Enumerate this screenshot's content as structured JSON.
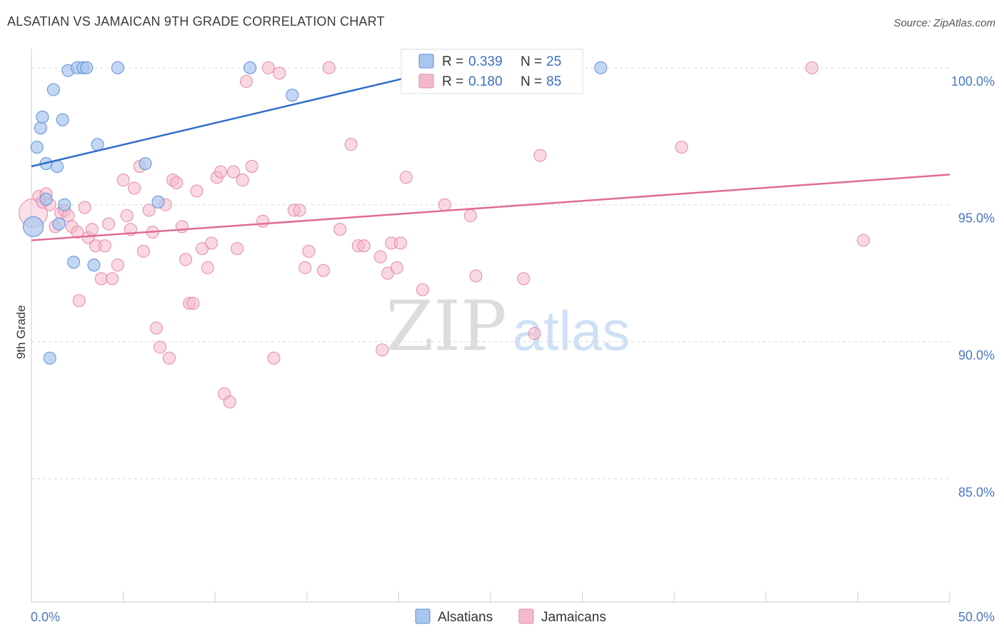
{
  "title": "ALSATIAN VS JAMAICAN 9TH GRADE CORRELATION CHART",
  "source": "Source: ZipAtlas.com",
  "watermark": {
    "zip": "ZIP",
    "atlas": "atlas"
  },
  "colors": {
    "blue_fill": "#a9c6ef",
    "blue_stroke": "#5e8fd6",
    "blue_line": "#2f6ccc",
    "pink_fill": "#f4b8cb",
    "pink_stroke": "#e58aa7",
    "pink_line": "#e06c96",
    "grid": "#d8d8d8",
    "axis_text": "#4a78c2"
  },
  "legend": {
    "r_label": "R =",
    "n_label": "N =",
    "rows": [
      {
        "series": "Alsatians",
        "r": "0.339",
        "n": "25"
      },
      {
        "series": "Jamaicans",
        "r": "0.180",
        "n": "85"
      }
    ]
  },
  "chart_data": {
    "type": "scatter",
    "title": "ALSATIAN VS JAMAICAN 9TH GRADE CORRELATION CHART",
    "xlabel": "",
    "ylabel": "9th Grade",
    "xlim": [
      0,
      50
    ],
    "ylim": [
      80.5,
      100.7
    ],
    "x_ticks": [
      0,
      50
    ],
    "x_tick_labels": [
      "0.0%",
      "50.0%"
    ],
    "y_ticks": [
      100,
      95,
      90,
      85
    ],
    "y_tick_labels": [
      "100.0%",
      "95.0%",
      "90.0%",
      "85.0%"
    ],
    "grid": true,
    "legend_position": "top-center",
    "series": [
      {
        "name": "Alsatians",
        "r": 0.339,
        "n": 25,
        "trend": {
          "x": [
            0,
            24
          ],
          "y": [
            96.4,
            100.2
          ]
        },
        "points": [
          {
            "x": 0.1,
            "y": 94.2,
            "big": true
          },
          {
            "x": 0.3,
            "y": 97.1
          },
          {
            "x": 0.5,
            "y": 97.8
          },
          {
            "x": 0.6,
            "y": 98.2
          },
          {
            "x": 0.8,
            "y": 96.5
          },
          {
            "x": 0.8,
            "y": 95.2
          },
          {
            "x": 1.0,
            "y": 89.4
          },
          {
            "x": 1.2,
            "y": 99.2
          },
          {
            "x": 1.4,
            "y": 96.4
          },
          {
            "x": 1.5,
            "y": 94.3
          },
          {
            "x": 1.7,
            "y": 98.1
          },
          {
            "x": 1.8,
            "y": 95.0
          },
          {
            "x": 2.0,
            "y": 99.9
          },
          {
            "x": 2.3,
            "y": 92.9
          },
          {
            "x": 2.5,
            "y": 100.0
          },
          {
            "x": 2.8,
            "y": 100.0
          },
          {
            "x": 3.0,
            "y": 100.0
          },
          {
            "x": 3.4,
            "y": 92.8
          },
          {
            "x": 3.6,
            "y": 97.2
          },
          {
            "x": 4.7,
            "y": 100.0
          },
          {
            "x": 6.2,
            "y": 96.5
          },
          {
            "x": 6.9,
            "y": 95.1
          },
          {
            "x": 11.9,
            "y": 100.0
          },
          {
            "x": 14.2,
            "y": 99.0
          },
          {
            "x": 31.0,
            "y": 100.0
          }
        ]
      },
      {
        "name": "Jamaicans",
        "r": 0.18,
        "n": 85,
        "trend": {
          "x": [
            0,
            50
          ],
          "y": [
            93.7,
            96.1
          ]
        },
        "points": [
          {
            "x": 0.1,
            "y": 94.7,
            "big": true
          },
          {
            "x": 0.4,
            "y": 95.3
          },
          {
            "x": 0.6,
            "y": 95.1
          },
          {
            "x": 0.8,
            "y": 95.4
          },
          {
            "x": 1.0,
            "y": 95.0
          },
          {
            "x": 1.3,
            "y": 94.2
          },
          {
            "x": 1.6,
            "y": 94.7
          },
          {
            "x": 1.8,
            "y": 94.8
          },
          {
            "x": 2.0,
            "y": 94.6
          },
          {
            "x": 2.2,
            "y": 94.2
          },
          {
            "x": 2.5,
            "y": 94.0
          },
          {
            "x": 2.6,
            "y": 91.5
          },
          {
            "x": 2.9,
            "y": 94.9
          },
          {
            "x": 3.1,
            "y": 93.8
          },
          {
            "x": 3.3,
            "y": 94.1
          },
          {
            "x": 3.5,
            "y": 93.5
          },
          {
            "x": 3.8,
            "y": 92.3
          },
          {
            "x": 4.0,
            "y": 93.5
          },
          {
            "x": 4.2,
            "y": 94.3
          },
          {
            "x": 4.4,
            "y": 92.3
          },
          {
            "x": 4.7,
            "y": 92.8
          },
          {
            "x": 5.0,
            "y": 95.9
          },
          {
            "x": 5.2,
            "y": 94.6
          },
          {
            "x": 5.4,
            "y": 94.1
          },
          {
            "x": 5.6,
            "y": 95.6
          },
          {
            "x": 5.9,
            "y": 96.4
          },
          {
            "x": 6.1,
            "y": 93.3
          },
          {
            "x": 6.4,
            "y": 94.8
          },
          {
            "x": 6.6,
            "y": 94.0
          },
          {
            "x": 6.8,
            "y": 90.5
          },
          {
            "x": 7.0,
            "y": 89.8
          },
          {
            "x": 7.3,
            "y": 95.0
          },
          {
            "x": 7.5,
            "y": 89.4
          },
          {
            "x": 7.7,
            "y": 95.9
          },
          {
            "x": 7.9,
            "y": 95.8
          },
          {
            "x": 8.2,
            "y": 94.2
          },
          {
            "x": 8.4,
            "y": 93.0
          },
          {
            "x": 8.6,
            "y": 91.4
          },
          {
            "x": 8.8,
            "y": 91.4
          },
          {
            "x": 9.0,
            "y": 95.5
          },
          {
            "x": 9.3,
            "y": 93.4
          },
          {
            "x": 9.6,
            "y": 92.7
          },
          {
            "x": 9.8,
            "y": 93.6
          },
          {
            "x": 10.1,
            "y": 96.0
          },
          {
            "x": 10.3,
            "y": 96.2
          },
          {
            "x": 10.5,
            "y": 88.1
          },
          {
            "x": 10.8,
            "y": 87.8
          },
          {
            "x": 11.0,
            "y": 96.2
          },
          {
            "x": 11.2,
            "y": 93.4
          },
          {
            "x": 11.5,
            "y": 95.9
          },
          {
            "x": 11.7,
            "y": 99.5
          },
          {
            "x": 12.0,
            "y": 96.4
          },
          {
            "x": 12.6,
            "y": 94.4
          },
          {
            "x": 12.9,
            "y": 100.0
          },
          {
            "x": 13.2,
            "y": 89.4
          },
          {
            "x": 13.5,
            "y": 99.8
          },
          {
            "x": 14.3,
            "y": 94.8
          },
          {
            "x": 14.6,
            "y": 94.8
          },
          {
            "x": 14.9,
            "y": 92.7
          },
          {
            "x": 15.1,
            "y": 93.3
          },
          {
            "x": 15.9,
            "y": 92.6
          },
          {
            "x": 16.2,
            "y": 100.0
          },
          {
            "x": 16.8,
            "y": 94.1
          },
          {
            "x": 17.4,
            "y": 97.2
          },
          {
            "x": 17.8,
            "y": 93.5
          },
          {
            "x": 18.1,
            "y": 93.5
          },
          {
            "x": 19.0,
            "y": 93.1
          },
          {
            "x": 19.1,
            "y": 89.7
          },
          {
            "x": 19.4,
            "y": 92.5
          },
          {
            "x": 19.6,
            "y": 93.6
          },
          {
            "x": 19.9,
            "y": 92.7
          },
          {
            "x": 20.1,
            "y": 93.6
          },
          {
            "x": 20.4,
            "y": 96.0
          },
          {
            "x": 21.3,
            "y": 91.9
          },
          {
            "x": 22.5,
            "y": 95.0
          },
          {
            "x": 23.9,
            "y": 94.6
          },
          {
            "x": 24.2,
            "y": 92.4
          },
          {
            "x": 26.6,
            "y": 100.0
          },
          {
            "x": 26.8,
            "y": 92.3
          },
          {
            "x": 27.4,
            "y": 90.3
          },
          {
            "x": 27.7,
            "y": 96.8
          },
          {
            "x": 35.4,
            "y": 97.1
          },
          {
            "x": 42.5,
            "y": 100.0
          },
          {
            "x": 45.3,
            "y": 93.7
          },
          {
            "x": 23.6,
            "y": 99.9
          }
        ]
      }
    ]
  }
}
